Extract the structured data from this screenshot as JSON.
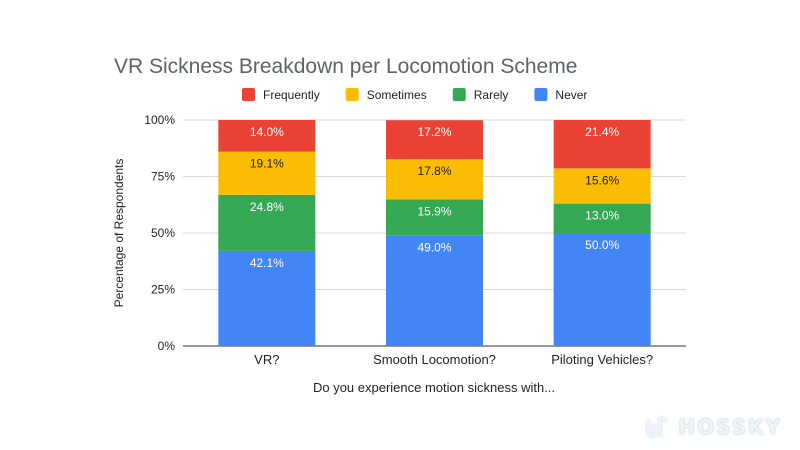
{
  "chart_data": {
    "type": "bar",
    "stacked": true,
    "percent": true,
    "title": "VR Sickness Breakdown per Locomotion Scheme",
    "xlabel": "Do you experience motion sickness with...",
    "ylabel": "Percentage of Respondents",
    "categories": [
      "VR?",
      "Smooth Locomotion?",
      "Piloting Vehicles?"
    ],
    "series": [
      {
        "name": "Never",
        "color": "#4285f4",
        "values": [
          42.1,
          49.0,
          50.0
        ],
        "labels": [
          "42.1%",
          "49.0%",
          "50.0%"
        ]
      },
      {
        "name": "Rarely",
        "color": "#34a853",
        "values": [
          24.8,
          15.9,
          13.0
        ],
        "labels": [
          "24.8%",
          "15.9%",
          "13.0%"
        ]
      },
      {
        "name": "Sometimes",
        "color": "#fbbc04",
        "values": [
          19.1,
          17.8,
          15.6
        ],
        "labels": [
          "19.1%",
          "17.8%",
          "15.6%"
        ]
      },
      {
        "name": "Frequently",
        "color": "#ea4335",
        "values": [
          14.0,
          17.2,
          21.4
        ],
        "labels": [
          "14.0%",
          "17.2%",
          "21.4%"
        ]
      }
    ],
    "legend_order": [
      "Frequently",
      "Sometimes",
      "Rarely",
      "Never"
    ],
    "legend_position": "top",
    "yticks": [
      "0%",
      "25%",
      "50%",
      "75%",
      "100%"
    ],
    "ylim": [
      0,
      100
    ],
    "grid": true
  },
  "watermark": {
    "text": "HOSSKY"
  }
}
